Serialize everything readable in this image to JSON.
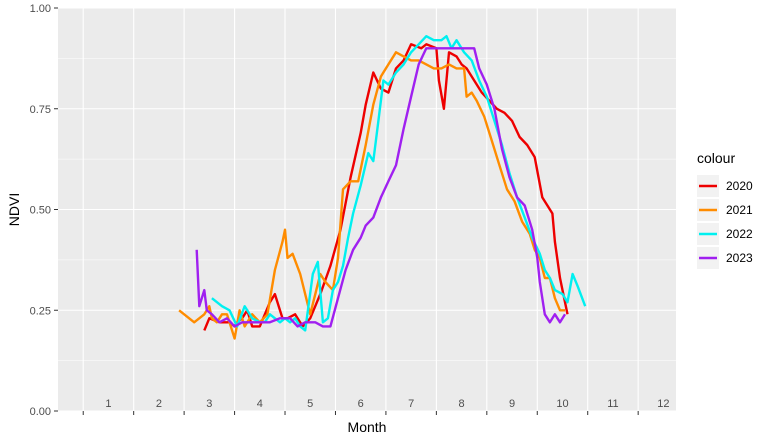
{
  "chart_data": {
    "type": "line",
    "xlabel": "Month",
    "ylabel": "NDVI",
    "xlim": [
      0.5,
      12.75
    ],
    "ylim": [
      0,
      1
    ],
    "yticks": [
      0,
      0.25,
      0.5,
      0.75,
      1
    ],
    "ytick_labels": [
      "0.00",
      "0.25",
      "0.50",
      "0.75",
      "1.00"
    ],
    "month_labels": [
      "1",
      "2",
      "3",
      "4",
      "5",
      "6",
      "7",
      "8",
      "9",
      "10",
      "11",
      "12"
    ],
    "grid": true,
    "legend_title": "colour",
    "legend_position": "right",
    "series": [
      {
        "name": "2020",
        "color": "#ee0000",
        "x": [
          3.4,
          3.5,
          3.7,
          3.9,
          4.0,
          4.05,
          4.15,
          4.25,
          4.35,
          4.5,
          4.7,
          4.8,
          4.95,
          5.05,
          5.2,
          5.35,
          5.5,
          5.7,
          5.9,
          6.1,
          6.3,
          6.5,
          6.6,
          6.75,
          6.9,
          7.05,
          7.2,
          7.35,
          7.5,
          7.7,
          7.8,
          8.0,
          8.05,
          8.15,
          8.25,
          8.4,
          8.5,
          8.6,
          8.75,
          8.9,
          9.05,
          9.2,
          9.35,
          9.5,
          9.65,
          9.8,
          9.95,
          10.1,
          10.2,
          10.3,
          10.35,
          10.45,
          10.5,
          10.6
        ],
        "y": [
          0.2,
          0.23,
          0.22,
          0.22,
          0.21,
          0.22,
          0.23,
          0.25,
          0.21,
          0.21,
          0.27,
          0.29,
          0.23,
          0.23,
          0.24,
          0.21,
          0.23,
          0.29,
          0.36,
          0.45,
          0.58,
          0.69,
          0.76,
          0.84,
          0.8,
          0.79,
          0.85,
          0.87,
          0.91,
          0.9,
          0.91,
          0.9,
          0.82,
          0.75,
          0.89,
          0.88,
          0.86,
          0.85,
          0.82,
          0.79,
          0.77,
          0.75,
          0.74,
          0.72,
          0.68,
          0.66,
          0.63,
          0.53,
          0.51,
          0.49,
          0.42,
          0.33,
          0.3,
          0.24
        ]
      },
      {
        "name": "2021",
        "color": "#ff8c00",
        "x": [
          2.9,
          3.2,
          3.4,
          3.5,
          3.55,
          3.65,
          3.75,
          3.85,
          4.0,
          4.1,
          4.2,
          4.35,
          4.5,
          4.65,
          4.8,
          4.95,
          5.0,
          5.05,
          5.15,
          5.3,
          5.5,
          5.6,
          5.7,
          5.8,
          5.95,
          6.05,
          6.15,
          6.3,
          6.45,
          6.6,
          6.75,
          6.9,
          7.05,
          7.2,
          7.35,
          7.5,
          7.65,
          7.8,
          7.95,
          8.1,
          8.25,
          8.4,
          8.55,
          8.6,
          8.7,
          8.8,
          8.95,
          9.1,
          9.25,
          9.4,
          9.55,
          9.7,
          9.85,
          9.95,
          10.05,
          10.15,
          10.25,
          10.35,
          10.45,
          10.55
        ],
        "y": [
          0.25,
          0.22,
          0.24,
          0.26,
          0.23,
          0.22,
          0.24,
          0.24,
          0.18,
          0.25,
          0.21,
          0.24,
          0.22,
          0.24,
          0.35,
          0.42,
          0.45,
          0.38,
          0.39,
          0.34,
          0.24,
          0.29,
          0.34,
          0.32,
          0.3,
          0.38,
          0.55,
          0.57,
          0.57,
          0.66,
          0.76,
          0.83,
          0.86,
          0.89,
          0.88,
          0.87,
          0.87,
          0.86,
          0.85,
          0.85,
          0.86,
          0.85,
          0.85,
          0.78,
          0.79,
          0.77,
          0.73,
          0.67,
          0.61,
          0.55,
          0.52,
          0.47,
          0.44,
          0.4,
          0.38,
          0.33,
          0.33,
          0.28,
          0.25,
          0.25
        ]
      },
      {
        "name": "2022",
        "color": "#00f0f0",
        "x": [
          3.55,
          3.75,
          3.9,
          4.05,
          4.2,
          4.35,
          4.5,
          4.6,
          4.7,
          4.8,
          4.9,
          5.0,
          5.1,
          5.2,
          5.3,
          5.4,
          5.55,
          5.65,
          5.75,
          5.85,
          5.95,
          6.05,
          6.15,
          6.25,
          6.35,
          6.5,
          6.65,
          6.75,
          6.85,
          6.95,
          7.05,
          7.2,
          7.35,
          7.5,
          7.65,
          7.8,
          7.95,
          8.1,
          8.2,
          8.3,
          8.4,
          8.55,
          8.7,
          8.85,
          9.0,
          9.15,
          9.3,
          9.45,
          9.6,
          9.75,
          9.9,
          10.05,
          10.15,
          10.25,
          10.35,
          10.5,
          10.6,
          10.7,
          10.8,
          10.95
        ],
        "y": [
          0.28,
          0.26,
          0.25,
          0.21,
          0.26,
          0.23,
          0.22,
          0.22,
          0.24,
          0.23,
          0.22,
          0.23,
          0.22,
          0.23,
          0.21,
          0.2,
          0.34,
          0.37,
          0.22,
          0.23,
          0.3,
          0.32,
          0.36,
          0.43,
          0.49,
          0.56,
          0.64,
          0.62,
          0.72,
          0.82,
          0.81,
          0.84,
          0.86,
          0.89,
          0.91,
          0.93,
          0.92,
          0.92,
          0.93,
          0.9,
          0.92,
          0.89,
          0.87,
          0.82,
          0.78,
          0.72,
          0.66,
          0.59,
          0.53,
          0.48,
          0.43,
          0.39,
          0.35,
          0.33,
          0.3,
          0.29,
          0.27,
          0.34,
          0.31,
          0.26
        ]
      },
      {
        "name": "2023",
        "color": "#a020f0",
        "x": [
          3.25,
          3.3,
          3.4,
          3.45,
          3.55,
          3.7,
          3.85,
          4.0,
          4.15,
          4.3,
          4.5,
          4.7,
          4.9,
          5.1,
          5.25,
          5.4,
          5.6,
          5.75,
          5.9,
          6.05,
          6.2,
          6.35,
          6.5,
          6.6,
          6.75,
          6.9,
          7.05,
          7.2,
          7.35,
          7.5,
          7.65,
          7.8,
          7.95,
          8.1,
          8.25,
          8.4,
          8.55,
          8.65,
          8.75,
          8.85,
          9.0,
          9.15,
          9.3,
          9.45,
          9.6,
          9.75,
          9.9,
          10.0,
          10.05,
          10.15,
          10.25,
          10.35,
          10.45,
          10.55
        ],
        "y": [
          0.4,
          0.26,
          0.3,
          0.25,
          0.24,
          0.22,
          0.23,
          0.21,
          0.22,
          0.22,
          0.22,
          0.22,
          0.23,
          0.23,
          0.21,
          0.22,
          0.22,
          0.21,
          0.21,
          0.28,
          0.35,
          0.4,
          0.43,
          0.46,
          0.48,
          0.53,
          0.57,
          0.61,
          0.7,
          0.78,
          0.86,
          0.9,
          0.9,
          0.9,
          0.9,
          0.9,
          0.9,
          0.9,
          0.9,
          0.85,
          0.81,
          0.75,
          0.65,
          0.58,
          0.53,
          0.51,
          0.45,
          0.38,
          0.32,
          0.24,
          0.22,
          0.24,
          0.22,
          0.24
        ]
      }
    ]
  }
}
